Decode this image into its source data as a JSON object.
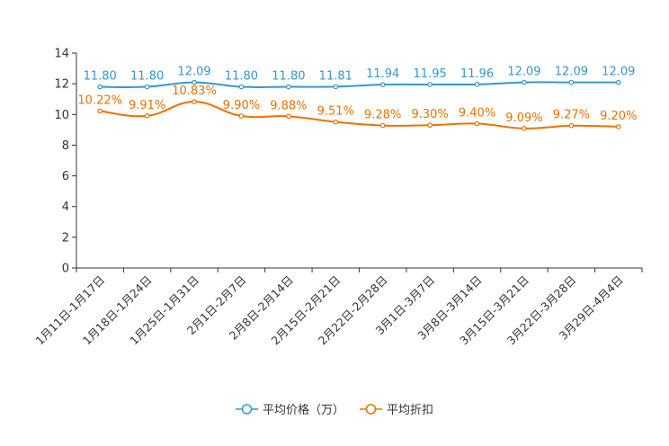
{
  "chart_data": {
    "type": "line",
    "title": "",
    "xlabel": "",
    "ylabel": "",
    "ylim": [
      0,
      14
    ],
    "yticks": [
      0,
      2,
      4,
      6,
      8,
      10,
      12,
      14
    ],
    "grid": false,
    "legend_position": "bottom",
    "categories": [
      "1月11日-1月17日",
      "1月18日-1月24日",
      "1月25日-1月31日",
      "2月1日-2月7日",
      "2月8日-2月14日",
      "2月15日-2月21日",
      "2月22日-2月28日",
      "3月1日-3月7日",
      "3月8日-3月14日",
      "3月15日-3月21日",
      "3月22日-3月28日",
      "3月29日-4月4日"
    ],
    "series": [
      {
        "name": "平均价格（万）",
        "color": "#3399cc",
        "values": [
          11.8,
          11.8,
          12.09,
          11.8,
          11.8,
          11.81,
          11.94,
          11.95,
          11.96,
          12.09,
          12.09,
          12.09
        ],
        "labels": [
          "11.80",
          "11.80",
          "12.09",
          "11.80",
          "11.80",
          "11.81",
          "11.94",
          "11.95",
          "11.96",
          "12.09",
          "12.09",
          "12.09"
        ]
      },
      {
        "name": "平均折扣",
        "color": "#f07000",
        "values": [
          10.22,
          9.91,
          10.83,
          9.9,
          9.88,
          9.51,
          9.28,
          9.3,
          9.4,
          9.09,
          9.27,
          9.2
        ],
        "labels": [
          "10.22%",
          "9.91%",
          "10.83%",
          "9.90%",
          "9.88%",
          "9.51%",
          "9.28%",
          "9.30%",
          "9.40%",
          "9.09%",
          "9.27%",
          "9.20%"
        ]
      }
    ]
  }
}
